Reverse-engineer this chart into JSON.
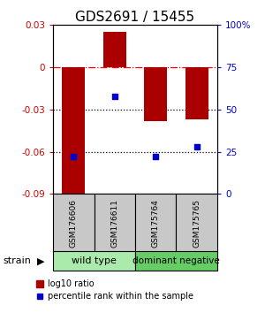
{
  "title": "GDS2691 / 15455",
  "samples": [
    "GSM176606",
    "GSM176611",
    "GSM175764",
    "GSM175765"
  ],
  "log10_ratio": [
    -0.092,
    0.025,
    -0.038,
    -0.037
  ],
  "percentile_rank": [
    22,
    58,
    22,
    28
  ],
  "ylim_left": [
    -0.09,
    0.03
  ],
  "ylim_right": [
    0,
    100
  ],
  "yticks_left": [
    0.03,
    0,
    -0.03,
    -0.06,
    -0.09
  ],
  "yticks_right": [
    100,
    75,
    50,
    25,
    0
  ],
  "ytick_right_labels": [
    "100%",
    "75",
    "50",
    "25",
    "0"
  ],
  "bar_color": "#aa0000",
  "dot_color": "#0000cc",
  "bar_width": 0.55,
  "group1_label": "wild type",
  "group1_color": "#aaeaaa",
  "group2_label": "dominant negative",
  "group2_color": "#66cc66",
  "sample_box_color": "#c8c8c8",
  "strain_label": "strain",
  "legend_bar_label": "log10 ratio",
  "legend_dot_label": "percentile rank within the sample",
  "left_tick_color": "#cc0000",
  "right_tick_color": "#0000cc",
  "title_fontsize": 11,
  "tick_fontsize": 7.5,
  "sample_fontsize": 6.5,
  "group_fontsize": 8,
  "legend_fontsize": 7,
  "strain_fontsize": 8
}
